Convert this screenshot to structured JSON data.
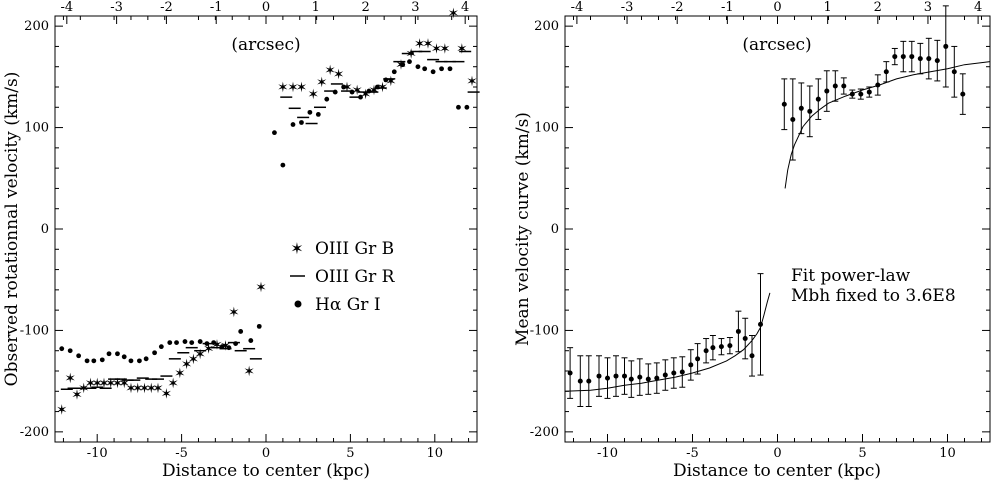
{
  "chart_data": [
    {
      "type": "scatter",
      "xlabel": "Distance to center (kpc)",
      "ylabel": "Observed rotationnal velocity (km/s)",
      "top_axis_label": "(arcsec)",
      "xlim": [
        -12.5,
        12.5
      ],
      "ylim": [
        -210,
        210
      ],
      "x_ticks": [
        -10,
        -5,
        0,
        5,
        10
      ],
      "y_ticks": [
        -200,
        -100,
        0,
        100,
        200
      ],
      "top_ticks": [
        -4,
        -3,
        -2,
        -1,
        0,
        1,
        2,
        3,
        4
      ],
      "kpc_per_arcsec": 2.95,
      "legend": [
        {
          "label": "OIII Gr B",
          "marker": "star"
        },
        {
          "label": "OIII Gr R",
          "marker": "dash"
        },
        {
          "label": "Hα Gr I",
          "marker": "dot"
        }
      ],
      "series": [
        {
          "name": "OIII Gr B",
          "marker": "star",
          "points": [
            [
              -12.1,
              -178
            ],
            [
              -11.6,
              -147
            ],
            [
              -11.2,
              -163
            ],
            [
              -10.8,
              -157
            ],
            [
              -10.4,
              -152
            ],
            [
              -10.0,
              -152
            ],
            [
              -9.6,
              -152
            ],
            [
              -9.2,
              -152
            ],
            [
              -8.8,
              -152
            ],
            [
              -8.4,
              -152
            ],
            [
              -8.0,
              -157
            ],
            [
              -7.6,
              -157
            ],
            [
              -7.2,
              -157
            ],
            [
              -6.8,
              -157
            ],
            [
              -6.4,
              -157
            ],
            [
              -5.9,
              -162
            ],
            [
              -5.5,
              -152
            ],
            [
              -5.1,
              -142
            ],
            [
              -4.7,
              -133
            ],
            [
              -4.3,
              -128
            ],
            [
              -3.9,
              -123
            ],
            [
              -3.4,
              -118
            ],
            [
              -2.9,
              -114
            ],
            [
              -2.4,
              -115
            ],
            [
              -1.9,
              -82
            ],
            [
              -1.0,
              -140
            ],
            [
              -0.3,
              -57
            ],
            [
              1.0,
              140
            ],
            [
              1.6,
              140
            ],
            [
              2.1,
              140
            ],
            [
              2.8,
              133
            ],
            [
              3.3,
              145
            ],
            [
              3.8,
              157
            ],
            [
              4.3,
              153
            ],
            [
              4.8,
              140
            ],
            [
              5.4,
              137
            ],
            [
              5.9,
              133
            ],
            [
              6.4,
              137
            ],
            [
              6.9,
              140
            ],
            [
              7.4,
              146
            ],
            [
              8.0,
              162
            ],
            [
              8.6,
              173
            ],
            [
              9.1,
              183
            ],
            [
              9.6,
              183
            ],
            [
              10.1,
              178
            ],
            [
              10.6,
              178
            ],
            [
              11.1,
              213
            ],
            [
              11.6,
              178
            ],
            [
              12.2,
              146
            ]
          ]
        },
        {
          "name": "OIII Gr R",
          "marker": "dash",
          "points": [
            [
              -11.8,
              -158
            ],
            [
              -11.4,
              -157
            ],
            [
              -10.8,
              -157
            ],
            [
              -10.4,
              -157
            ],
            [
              -10.0,
              -156
            ],
            [
              -9.5,
              -157
            ],
            [
              -9.0,
              -148
            ],
            [
              -8.6,
              -148
            ],
            [
              -8.2,
              -149
            ],
            [
              -7.8,
              -149
            ],
            [
              -7.3,
              -147
            ],
            [
              -6.8,
              -148
            ],
            [
              -6.4,
              -148
            ],
            [
              -5.9,
              -145
            ],
            [
              -5.4,
              -128
            ],
            [
              -4.9,
              -122
            ],
            [
              -4.4,
              -117
            ],
            [
              -3.9,
              -120
            ],
            [
              -3.4,
              -113
            ],
            [
              -2.9,
              -117
            ],
            [
              -2.4,
              -118
            ],
            [
              -1.9,
              -112
            ],
            [
              -1.5,
              -120
            ],
            [
              -1.0,
              -118
            ],
            [
              -0.6,
              -128
            ],
            [
              1.2,
              130
            ],
            [
              1.7,
              119
            ],
            [
              2.2,
              110
            ],
            [
              2.7,
              104
            ],
            [
              3.2,
              120
            ],
            [
              3.8,
              136
            ],
            [
              4.2,
              143
            ],
            [
              4.8,
              136
            ],
            [
              5.3,
              130
            ],
            [
              5.8,
              135
            ],
            [
              6.3,
              135
            ],
            [
              6.8,
              139
            ],
            [
              7.3,
              148
            ],
            [
              7.9,
              165
            ],
            [
              8.4,
              173
            ],
            [
              8.9,
              175
            ],
            [
              9.4,
              175
            ],
            [
              9.9,
              167
            ],
            [
              10.4,
              165
            ],
            [
              10.9,
              165
            ],
            [
              11.4,
              165
            ],
            [
              11.8,
              175
            ],
            [
              12.3,
              135
            ]
          ]
        },
        {
          "name": "Hα Gr I",
          "marker": "dot",
          "points": [
            [
              -12.1,
              -118
            ],
            [
              -11.6,
              -120
            ],
            [
              -11.1,
              -125
            ],
            [
              -10.6,
              -130
            ],
            [
              -10.2,
              -130
            ],
            [
              -9.7,
              -129
            ],
            [
              -9.3,
              -123
            ],
            [
              -8.8,
              -123
            ],
            [
              -8.4,
              -126
            ],
            [
              -8.0,
              -130
            ],
            [
              -7.5,
              -130
            ],
            [
              -7.1,
              -128
            ],
            [
              -6.6,
              -122
            ],
            [
              -6.2,
              -116
            ],
            [
              -5.7,
              -112
            ],
            [
              -5.3,
              -112
            ],
            [
              -4.8,
              -111
            ],
            [
              -4.4,
              -112
            ],
            [
              -3.9,
              -111
            ],
            [
              -3.5,
              -113
            ],
            [
              -3.1,
              -112
            ],
            [
              -2.6,
              -116
            ],
            [
              -2.2,
              -117
            ],
            [
              -1.8,
              -113
            ],
            [
              -1.5,
              -101
            ],
            [
              -0.9,
              -110
            ],
            [
              -0.4,
              -96
            ],
            [
              0.5,
              95
            ],
            [
              1.0,
              63
            ],
            [
              1.6,
              103
            ],
            [
              2.1,
              105
            ],
            [
              2.6,
              115
            ],
            [
              3.1,
              113
            ],
            [
              3.6,
              128
            ],
            [
              4.1,
              135
            ],
            [
              4.6,
              140
            ],
            [
              5.1,
              135
            ],
            [
              5.6,
              130
            ],
            [
              6.1,
              136
            ],
            [
              6.6,
              140
            ],
            [
              7.1,
              147
            ],
            [
              7.6,
              155
            ],
            [
              8.1,
              162
            ],
            [
              8.5,
              165
            ],
            [
              9.0,
              160
            ],
            [
              9.4,
              158
            ],
            [
              9.9,
              155
            ],
            [
              10.4,
              158
            ],
            [
              10.9,
              158
            ],
            [
              11.4,
              120
            ],
            [
              11.9,
              120
            ]
          ]
        }
      ]
    },
    {
      "type": "scatter",
      "xlabel": "Distance to center (kpc)",
      "ylabel": "Mean  velocity curve (km/s)",
      "top_axis_label": "(arcsec)",
      "xlim": [
        -12.5,
        12.5
      ],
      "ylim": [
        -210,
        210
      ],
      "x_ticks": [
        -10,
        -5,
        0,
        5,
        10
      ],
      "y_ticks": [
        -200,
        -100,
        0,
        100,
        200
      ],
      "top_ticks": [
        -4,
        -3,
        -2,
        -1,
        0,
        1,
        2,
        3,
        4
      ],
      "kpc_per_arcsec": 2.95,
      "annotation": [
        "Fit power-law",
        "Mbh fixed to 3.6E8"
      ],
      "series": [
        {
          "name": "Mean velocity",
          "marker": "dot_errorbar",
          "points": [
            [
              -12.2,
              -142,
              25
            ],
            [
              -11.6,
              -150,
              25
            ],
            [
              -11.1,
              -150,
              25
            ],
            [
              -10.5,
              -145,
              20
            ],
            [
              -10.0,
              -147,
              20
            ],
            [
              -9.5,
              -145,
              20
            ],
            [
              -9.0,
              -145,
              18
            ],
            [
              -8.6,
              -148,
              18
            ],
            [
              -8.1,
              -146,
              18
            ],
            [
              -7.6,
              -148,
              15
            ],
            [
              -7.1,
              -147,
              15
            ],
            [
              -6.6,
              -144,
              15
            ],
            [
              -6.1,
              -142,
              15
            ],
            [
              -5.6,
              -141,
              15
            ],
            [
              -5.1,
              -134,
              15
            ],
            [
              -4.7,
              -128,
              15
            ],
            [
              -4.2,
              -120,
              12
            ],
            [
              -3.8,
              -117,
              12
            ],
            [
              -3.3,
              -116,
              8
            ],
            [
              -2.8,
              -115,
              8
            ],
            [
              -2.3,
              -101,
              20
            ],
            [
              -1.9,
              -108,
              20
            ],
            [
              -1.5,
              -125,
              20
            ],
            [
              -1.0,
              -94,
              50
            ],
            [
              0.4,
              123,
              25
            ],
            [
              0.9,
              108,
              40
            ],
            [
              1.4,
              119,
              25
            ],
            [
              1.9,
              116,
              25
            ],
            [
              2.4,
              128,
              20
            ],
            [
              2.9,
              136,
              20
            ],
            [
              3.4,
              141,
              15
            ],
            [
              3.9,
              141,
              8
            ],
            [
              4.4,
              133,
              4
            ],
            [
              4.9,
              133,
              5
            ],
            [
              5.4,
              135,
              5
            ],
            [
              5.9,
              142,
              10
            ],
            [
              6.4,
              155,
              10
            ],
            [
              6.9,
              170,
              8
            ],
            [
              7.4,
              170,
              15
            ],
            [
              7.9,
              170,
              15
            ],
            [
              8.4,
              168,
              15
            ],
            [
              8.9,
              168,
              20
            ],
            [
              9.4,
              166,
              20
            ],
            [
              9.9,
              180,
              40
            ],
            [
              10.4,
              155,
              25
            ],
            [
              10.9,
              133,
              20
            ]
          ]
        },
        {
          "name": "Fit power-law",
          "marker": "line",
          "segments": [
            [
              [
                -12.5,
                -160
              ],
              [
                -11,
                -159
              ],
              [
                -10,
                -157
              ],
              [
                -9,
                -154
              ],
              [
                -8,
                -152
              ],
              [
                -7,
                -149
              ],
              [
                -6,
                -146
              ],
              [
                -5,
                -142
              ],
              [
                -4,
                -137
              ],
              [
                -3,
                -130
              ],
              [
                -2.5,
                -125
              ],
              [
                -2,
                -119
              ],
              [
                -1.5,
                -110
              ],
              [
                -1.2,
                -103
              ],
              [
                -1,
                -97
              ],
              [
                -0.8,
                -85
              ],
              [
                -0.6,
                -72
              ],
              [
                -0.45,
                -63
              ]
            ],
            [
              [
                0.45,
                40
              ],
              [
                0.6,
                58
              ],
              [
                0.8,
                73
              ],
              [
                1,
                83
              ],
              [
                1.5,
                101
              ],
              [
                2,
                111
              ],
              [
                2.5,
                118
              ],
              [
                3,
                124
              ],
              [
                4,
                131
              ],
              [
                5,
                137
              ],
              [
                6,
                142
              ],
              [
                7,
                148
              ],
              [
                8,
                152
              ],
              [
                9,
                155
              ],
              [
                10,
                158
              ],
              [
                11,
                162
              ],
              [
                12.5,
                165
              ]
            ]
          ]
        }
      ]
    }
  ]
}
